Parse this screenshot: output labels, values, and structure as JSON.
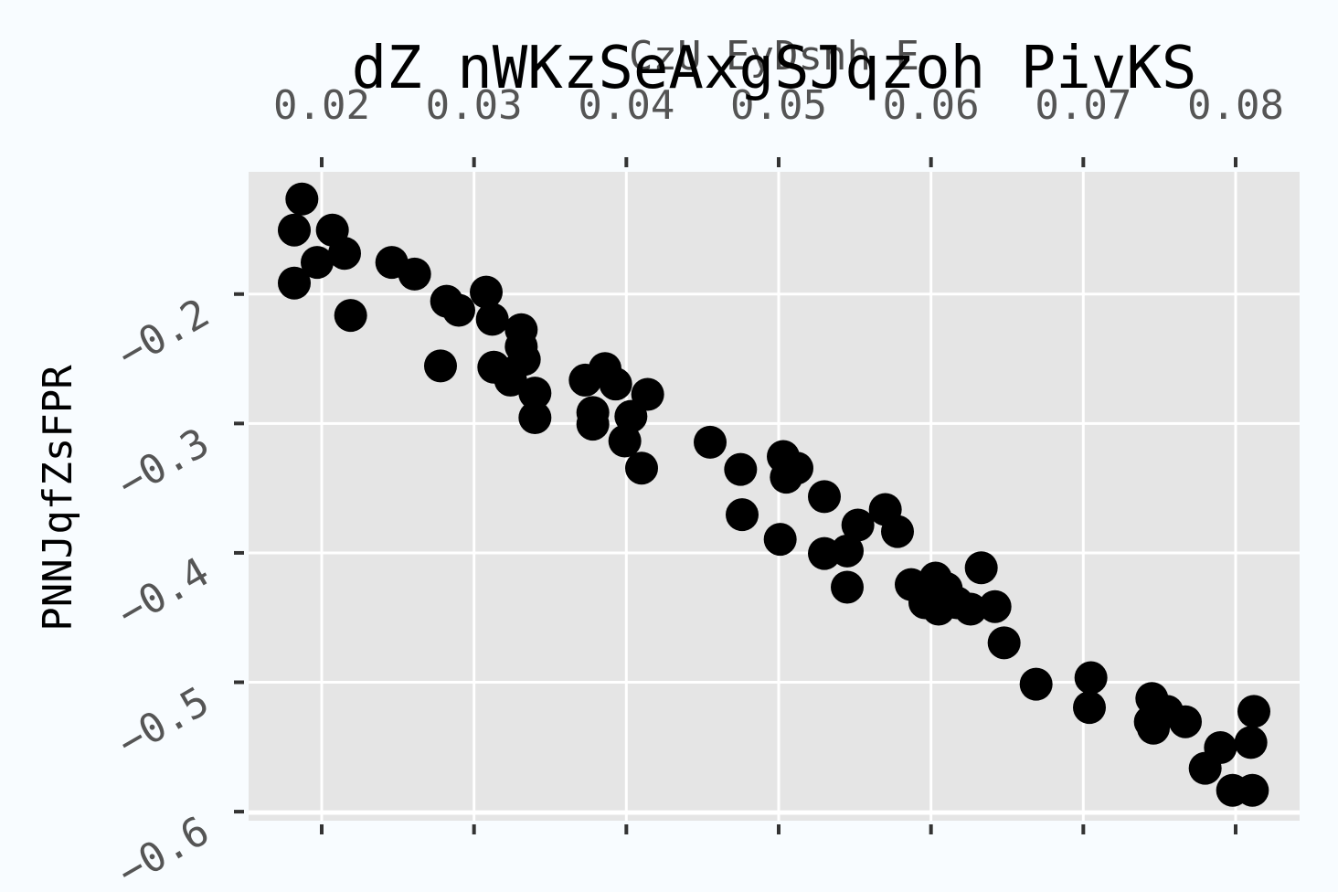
{
  "chart_data": {
    "type": "scatter",
    "title": "dZ nWKzSeAxgSJqzoh PivKS",
    "xlabel": "CzU EyDsnh E",
    "ylabel": "PNNJqfZsFPR",
    "x_axis_position": "top",
    "xlim": [
      0.0152,
      0.0842
    ],
    "ylim": [
      -0.607,
      -0.1055
    ],
    "x_ticks": [
      0.02,
      0.03,
      0.04,
      0.05,
      0.06,
      0.07,
      0.08
    ],
    "x_tick_labels": [
      "0.02",
      "0.03",
      "0.04",
      "0.05",
      "0.06",
      "0.07",
      "0.08"
    ],
    "y_ticks": [
      -0.2,
      -0.3,
      -0.4,
      -0.5,
      -0.6
    ],
    "y_tick_labels": [
      "−0.2",
      "−0.3",
      "−0.4",
      "−0.5",
      "−0.6"
    ],
    "grid": true,
    "colors": {
      "panel": "#e5e5e5",
      "grid": "#ffffff",
      "point": "#000000",
      "background": "#f8fcff"
    },
    "points": [
      [
        0.0187,
        -0.1265
      ],
      [
        0.0182,
        -0.1505
      ],
      [
        0.0207,
        -0.1505
      ],
      [
        0.0197,
        -0.1755
      ],
      [
        0.0215,
        -0.1685
      ],
      [
        0.0182,
        -0.1915
      ],
      [
        0.0219,
        -0.2165
      ],
      [
        0.0246,
        -0.1755
      ],
      [
        0.0261,
        -0.1845
      ],
      [
        0.0278,
        -0.2555
      ],
      [
        0.0282,
        -0.2055
      ],
      [
        0.029,
        -0.2125
      ],
      [
        0.0308,
        -0.1985
      ],
      [
        0.0312,
        -0.2195
      ],
      [
        0.0313,
        -0.2565
      ],
      [
        0.0322,
        -0.2615
      ],
      [
        0.0324,
        -0.2665
      ],
      [
        0.0331,
        -0.2275
      ],
      [
        0.0331,
        -0.2405
      ],
      [
        0.0333,
        -0.2505
      ],
      [
        0.034,
        -0.2765
      ],
      [
        0.034,
        -0.2955
      ],
      [
        0.0373,
        -0.2665
      ],
      [
        0.0378,
        -0.2915
      ],
      [
        0.0378,
        -0.3005
      ],
      [
        0.0386,
        -0.2575
      ],
      [
        0.0393,
        -0.2695
      ],
      [
        0.0399,
        -0.3135
      ],
      [
        0.0403,
        -0.2945
      ],
      [
        0.041,
        -0.3345
      ],
      [
        0.0414,
        -0.2775
      ],
      [
        0.0455,
        -0.3145
      ],
      [
        0.0475,
        -0.3355
      ],
      [
        0.0476,
        -0.3705
      ],
      [
        0.0501,
        -0.3895
      ],
      [
        0.0503,
        -0.3255
      ],
      [
        0.0505,
        -0.3415
      ],
      [
        0.0512,
        -0.3345
      ],
      [
        0.053,
        -0.3565
      ],
      [
        0.053,
        -0.4005
      ],
      [
        0.0545,
        -0.3985
      ],
      [
        0.0545,
        -0.4265
      ],
      [
        0.0552,
        -0.3785
      ],
      [
        0.057,
        -0.3665
      ],
      [
        0.0578,
        -0.3835
      ],
      [
        0.0587,
        -0.4245
      ],
      [
        0.0596,
        -0.4385
      ],
      [
        0.0603,
        -0.4195
      ],
      [
        0.0605,
        -0.4435
      ],
      [
        0.061,
        -0.4275
      ],
      [
        0.0617,
        -0.4385
      ],
      [
        0.0626,
        -0.4435
      ],
      [
        0.0633,
        -0.4115
      ],
      [
        0.0642,
        -0.4415
      ],
      [
        0.0648,
        -0.4695
      ],
      [
        0.0669,
        -0.5015
      ],
      [
        0.0704,
        -0.5195
      ],
      [
        0.0705,
        -0.4965
      ],
      [
        0.0744,
        -0.5305
      ],
      [
        0.0745,
        -0.5125
      ],
      [
        0.0746,
        -0.5355
      ],
      [
        0.0755,
        -0.5225
      ],
      [
        0.0767,
        -0.5305
      ],
      [
        0.078,
        -0.5665
      ],
      [
        0.079,
        -0.5505
      ],
      [
        0.0798,
        -0.5835
      ],
      [
        0.081,
        -0.5465
      ],
      [
        0.0811,
        -0.5835
      ],
      [
        0.0812,
        -0.5225
      ]
    ]
  }
}
